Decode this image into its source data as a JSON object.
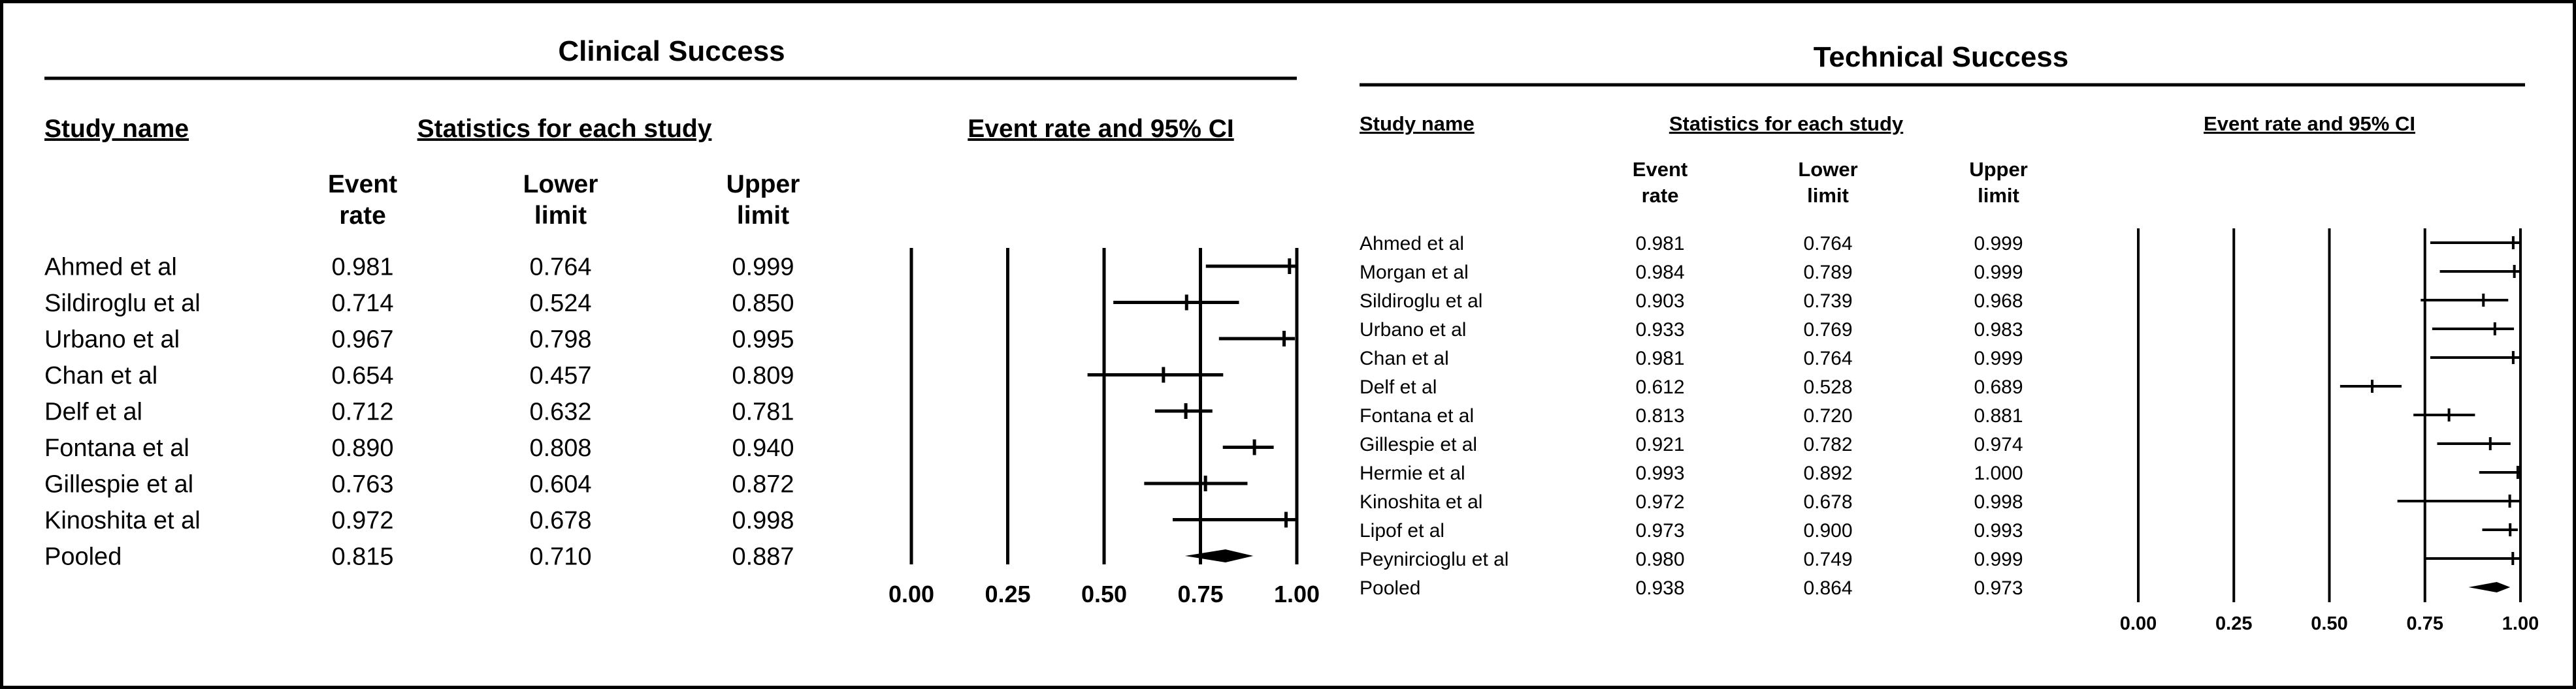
{
  "panels": [
    {
      "title": "Clinical Success",
      "col_study": "Study name",
      "col_group": "Statistics for each study",
      "col_plot": "Event rate and 95% CI",
      "sub_event": [
        "Event",
        "rate"
      ],
      "sub_lower": [
        "Lower",
        "limit"
      ],
      "sub_upper": [
        "Upper",
        "limit"
      ],
      "ticks": [
        "0.00",
        "0.25",
        "0.50",
        "0.75",
        "1.00"
      ]
    },
    {
      "title": "Technical Success",
      "col_study": "Study name",
      "col_group": "Statistics for each study",
      "col_plot": "Event rate and 95% CI",
      "sub_event": [
        "Event",
        "rate"
      ],
      "sub_lower": [
        "Lower",
        "limit"
      ],
      "sub_upper": [
        "Upper",
        "limit"
      ],
      "ticks": [
        "0.00",
        "0.25",
        "0.50",
        "0.75",
        "1.00"
      ]
    }
  ],
  "chart_data": [
    {
      "type": "forest",
      "title": "Clinical Success",
      "xlim": [
        0,
        1
      ],
      "xticks": [
        0,
        0.25,
        0.5,
        0.75,
        1.0
      ],
      "reference_lines": [
        0,
        0.25,
        0.5,
        0.75,
        1.0
      ],
      "studies": [
        {
          "name": "Ahmed et al",
          "event_rate": "0.981",
          "lower": "0.764",
          "upper": "0.999"
        },
        {
          "name": "Sildiroglu et al",
          "event_rate": "0.714",
          "lower": "0.524",
          "upper": "0.850"
        },
        {
          "name": "Urbano et al",
          "event_rate": "0.967",
          "lower": "0.798",
          "upper": "0.995"
        },
        {
          "name": "Chan et al",
          "event_rate": "0.654",
          "lower": "0.457",
          "upper": "0.809"
        },
        {
          "name": "Delf et al",
          "event_rate": "0.712",
          "lower": "0.632",
          "upper": "0.781"
        },
        {
          "name": "Fontana et al",
          "event_rate": "0.890",
          "lower": "0.808",
          "upper": "0.940"
        },
        {
          "name": "Gillespie et al",
          "event_rate": "0.763",
          "lower": "0.604",
          "upper": "0.872"
        },
        {
          "name": "Kinoshita et al",
          "event_rate": "0.972",
          "lower": "0.678",
          "upper": "0.998"
        }
      ],
      "pooled": {
        "name": "Pooled",
        "event_rate": "0.815",
        "lower": "0.710",
        "upper": "0.887"
      }
    },
    {
      "type": "forest",
      "title": "Technical Success",
      "xlim": [
        0,
        1
      ],
      "xticks": [
        0,
        0.25,
        0.5,
        0.75,
        1.0
      ],
      "reference_lines": [
        0,
        0.25,
        0.5,
        0.75,
        1.0
      ],
      "studies": [
        {
          "name": "Ahmed et al",
          "event_rate": "0.981",
          "lower": "0.764",
          "upper": "0.999"
        },
        {
          "name": "Morgan et al",
          "event_rate": "0.984",
          "lower": "0.789",
          "upper": "0.999"
        },
        {
          "name": "Sildiroglu et al",
          "event_rate": "0.903",
          "lower": "0.739",
          "upper": "0.968"
        },
        {
          "name": "Urbano et al",
          "event_rate": "0.933",
          "lower": "0.769",
          "upper": "0.983"
        },
        {
          "name": "Chan et al",
          "event_rate": "0.981",
          "lower": "0.764",
          "upper": "0.999"
        },
        {
          "name": "Delf et al",
          "event_rate": "0.612",
          "lower": "0.528",
          "upper": "0.689"
        },
        {
          "name": "Fontana et al",
          "event_rate": "0.813",
          "lower": "0.720",
          "upper": "0.881"
        },
        {
          "name": "Gillespie et al",
          "event_rate": "0.921",
          "lower": "0.782",
          "upper": "0.974"
        },
        {
          "name": "Hermie et al",
          "event_rate": "0.993",
          "lower": "0.892",
          "upper": "1.000"
        },
        {
          "name": "Kinoshita et al",
          "event_rate": "0.972",
          "lower": "0.678",
          "upper": "0.998"
        },
        {
          "name": "Lipof et al",
          "event_rate": "0.973",
          "lower": "0.900",
          "upper": "0.993"
        },
        {
          "name": "Peynircioglu et al",
          "event_rate": "0.980",
          "lower": "0.749",
          "upper": "0.999"
        }
      ],
      "pooled": {
        "name": "Pooled",
        "event_rate": "0.938",
        "lower": "0.864",
        "upper": "0.973"
      }
    }
  ]
}
